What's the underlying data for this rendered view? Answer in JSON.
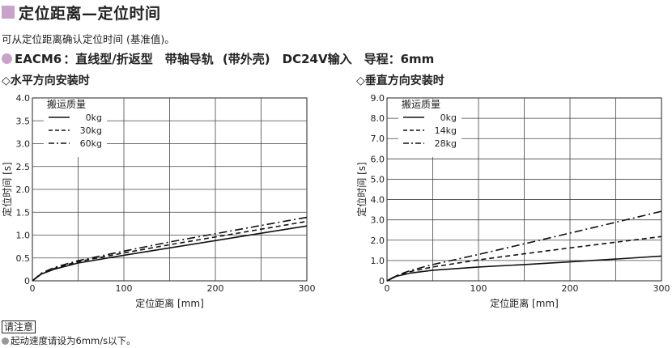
{
  "header": {
    "title": "定位距离—定位时间",
    "intro": "可从定位距离确认定位时间 (基准值)。",
    "model_name": "EACM6",
    "model_spec": "：直线型/折返型　带轴导轨 (带外壳)　DC24V输入　导程：6mm",
    "accent_color": "#c8a2c8"
  },
  "note": {
    "label": "请注意",
    "text": "起动速度请设为6mm/s以下。"
  },
  "chart_data": [
    {
      "type": "line",
      "subtitle": "◇水平方向安装时",
      "xlabel": "定位距离 [mm]",
      "ylabel": "定位时间 [s]",
      "xlim": [
        0,
        300
      ],
      "ylim": [
        0,
        4.0
      ],
      "xticks": [
        "0",
        "100",
        "200",
        "300"
      ],
      "yticks": [
        "0",
        "0.5",
        "1.0",
        "1.5",
        "2.0",
        "2.5",
        "3.0",
        "3.5",
        "4.0"
      ],
      "grid": true,
      "legend_title": "搬运质量",
      "legend_position": "top-left",
      "series": [
        {
          "name": "0kg",
          "dash": "solid",
          "x": [
            0,
            10,
            25,
            50,
            100,
            150,
            200,
            250,
            300
          ],
          "y": [
            0,
            0.15,
            0.26,
            0.39,
            0.56,
            0.72,
            0.88,
            1.04,
            1.2
          ]
        },
        {
          "name": "30kg",
          "dash": "dash",
          "x": [
            0,
            10,
            25,
            50,
            100,
            150,
            200,
            250,
            300
          ],
          "y": [
            0,
            0.16,
            0.28,
            0.42,
            0.61,
            0.79,
            0.96,
            1.13,
            1.3
          ]
        },
        {
          "name": "60kg",
          "dash": "dashdot",
          "x": [
            0,
            10,
            25,
            50,
            100,
            150,
            200,
            250,
            300
          ],
          "y": [
            0,
            0.17,
            0.3,
            0.44,
            0.65,
            0.85,
            1.03,
            1.21,
            1.39
          ]
        }
      ]
    },
    {
      "type": "line",
      "subtitle": "◇垂直方向安装时",
      "xlabel": "定位距离 [mm]",
      "ylabel": "定位时间 [s]",
      "xlim": [
        0,
        300
      ],
      "ylim": [
        0,
        9.0
      ],
      "xticks": [
        "0",
        "100",
        "200",
        "300"
      ],
      "yticks": [
        "0",
        "1.0",
        "2.0",
        "3.0",
        "4.0",
        "5.0",
        "6.0",
        "7.0",
        "8.0",
        "9.0"
      ],
      "grid": true,
      "legend_title": "搬运质量",
      "legend_position": "top-left",
      "series": [
        {
          "name": "0kg",
          "dash": "solid",
          "x": [
            0,
            10,
            25,
            50,
            100,
            150,
            200,
            250,
            300
          ],
          "y": [
            0,
            0.22,
            0.38,
            0.52,
            0.68,
            0.8,
            0.93,
            1.07,
            1.22
          ]
        },
        {
          "name": "14kg",
          "dash": "dash",
          "x": [
            0,
            10,
            25,
            50,
            100,
            150,
            200,
            250,
            300
          ],
          "y": [
            0,
            0.24,
            0.45,
            0.68,
            1.03,
            1.33,
            1.62,
            1.9,
            2.18
          ]
        },
        {
          "name": "28kg",
          "dash": "dashdot",
          "x": [
            0,
            10,
            25,
            50,
            100,
            150,
            200,
            250,
            300
          ],
          "y": [
            0,
            0.25,
            0.5,
            0.8,
            1.3,
            1.82,
            2.35,
            2.88,
            3.42
          ]
        }
      ]
    }
  ]
}
